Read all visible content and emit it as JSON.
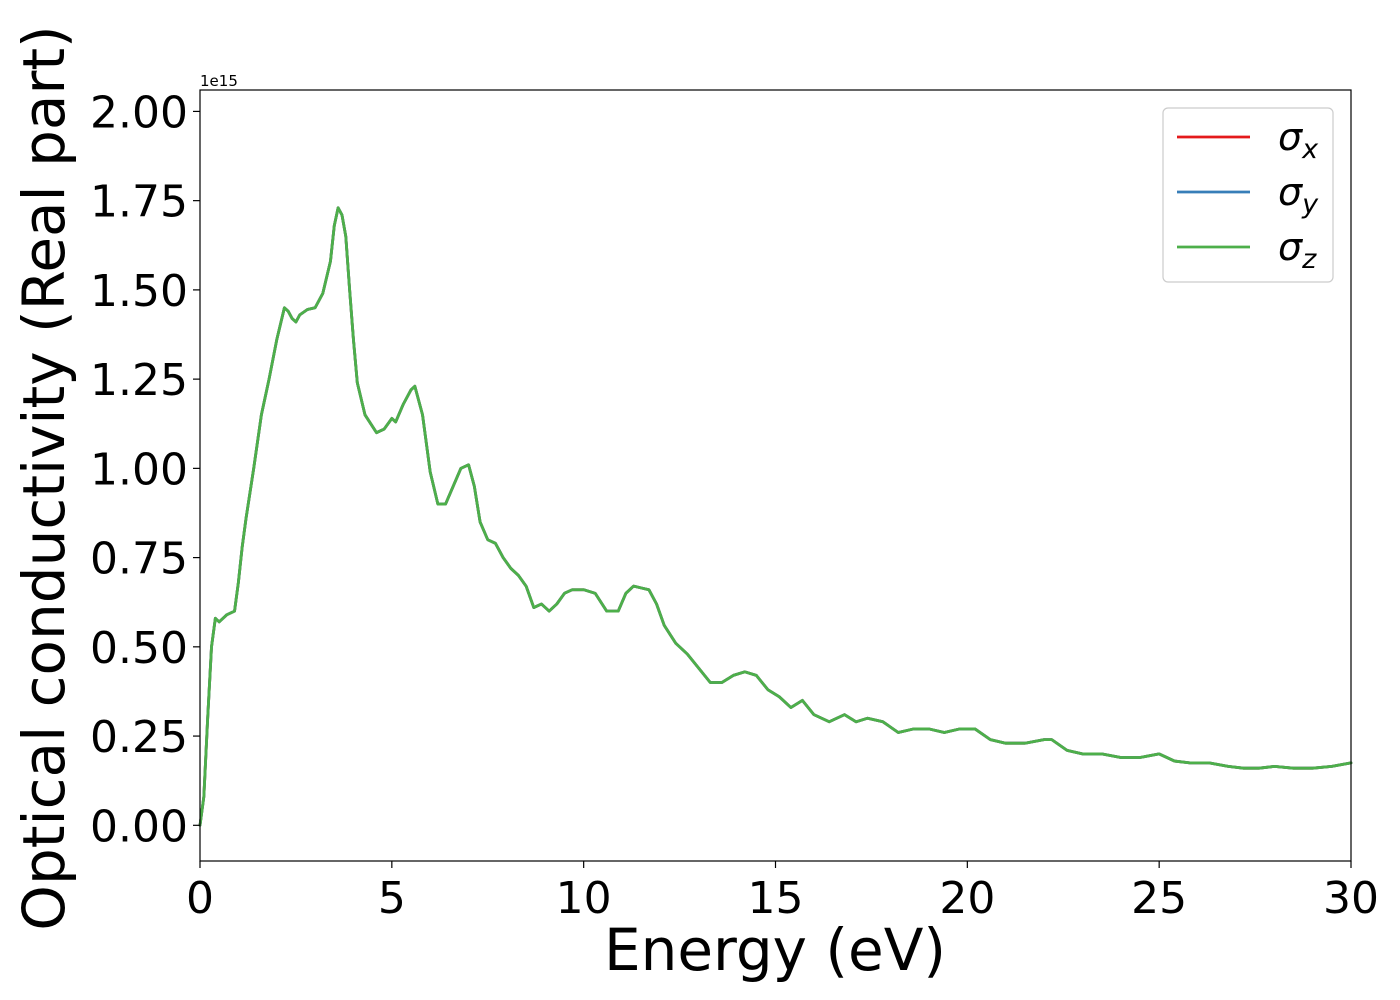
{
  "chart_data": {
    "type": "line",
    "title": "",
    "xlabel": "Energy (eV)",
    "ylabel": "Optical conductivity (Real part)",
    "y_offset_text": "1e15",
    "y_scale": 1000000000000000.0,
    "xlim": [
      0,
      30
    ],
    "ylim": [
      -0.1,
      2.06
    ],
    "x_ticks": [
      0,
      5,
      10,
      15,
      20,
      25,
      30
    ],
    "x_tick_labels": [
      "0",
      "5",
      "10",
      "15",
      "20",
      "25",
      "30"
    ],
    "y_ticks": [
      0,
      0.25,
      0.5,
      0.75,
      1.0,
      1.25,
      1.5,
      1.75,
      2.0
    ],
    "y_tick_labels": [
      "0.00",
      "0.25",
      "0.50",
      "0.75",
      "1.00",
      "1.25",
      "1.50",
      "1.75",
      "2.00"
    ],
    "grid": false,
    "legend_position": "top-right",
    "x": [
      0,
      0.1,
      0.2,
      0.3,
      0.4,
      0.5,
      0.7,
      0.9,
      1.0,
      1.1,
      1.2,
      1.4,
      1.6,
      1.8,
      2.0,
      2.2,
      2.3,
      2.4,
      2.5,
      2.6,
      2.8,
      3.0,
      3.2,
      3.4,
      3.5,
      3.6,
      3.7,
      3.8,
      3.9,
      4.0,
      4.1,
      4.3,
      4.6,
      4.8,
      5.0,
      5.1,
      5.3,
      5.5,
      5.6,
      5.8,
      6.0,
      6.2,
      6.4,
      6.6,
      6.8,
      7.0,
      7.15,
      7.3,
      7.5,
      7.7,
      7.9,
      8.1,
      8.3,
      8.5,
      8.7,
      8.9,
      9.1,
      9.3,
      9.5,
      9.7,
      10.0,
      10.3,
      10.6,
      10.9,
      11.1,
      11.3,
      11.5,
      11.7,
      11.9,
      12.1,
      12.4,
      12.7,
      13.0,
      13.3,
      13.6,
      13.9,
      14.2,
      14.5,
      14.8,
      15.1,
      15.4,
      15.7,
      16.0,
      16.4,
      16.8,
      17.1,
      17.4,
      17.8,
      18.2,
      18.6,
      19.0,
      19.4,
      19.8,
      20.2,
      20.6,
      21.0,
      21.5,
      22.0,
      22.2,
      22.6,
      23.0,
      23.5,
      24.0,
      24.5,
      25.0,
      25.4,
      25.8,
      26.3,
      26.8,
      27.2,
      27.6,
      28.0,
      28.5,
      29.0,
      29.5,
      30.0
    ],
    "series": [
      {
        "name": "σ_x",
        "color": "#e41a1c",
        "values": [
          0,
          0.08,
          0.3,
          0.5,
          0.58,
          0.57,
          0.59,
          0.6,
          0.68,
          0.78,
          0.86,
          1.0,
          1.15,
          1.25,
          1.36,
          1.45,
          1.44,
          1.42,
          1.41,
          1.43,
          1.445,
          1.45,
          1.49,
          1.58,
          1.68,
          1.73,
          1.71,
          1.65,
          1.5,
          1.36,
          1.24,
          1.15,
          1.1,
          1.11,
          1.14,
          1.13,
          1.18,
          1.22,
          1.23,
          1.15,
          0.99,
          0.9,
          0.9,
          0.95,
          1.0,
          1.01,
          0.95,
          0.85,
          0.8,
          0.79,
          0.75,
          0.72,
          0.7,
          0.67,
          0.61,
          0.62,
          0.6,
          0.62,
          0.65,
          0.66,
          0.66,
          0.65,
          0.6,
          0.6,
          0.65,
          0.67,
          0.665,
          0.66,
          0.62,
          0.56,
          0.51,
          0.48,
          0.44,
          0.4,
          0.4,
          0.42,
          0.43,
          0.42,
          0.38,
          0.36,
          0.33,
          0.35,
          0.31,
          0.29,
          0.31,
          0.29,
          0.3,
          0.29,
          0.26,
          0.27,
          0.27,
          0.26,
          0.27,
          0.27,
          0.24,
          0.23,
          0.23,
          0.24,
          0.24,
          0.21,
          0.2,
          0.2,
          0.19,
          0.19,
          0.2,
          0.18,
          0.175,
          0.175,
          0.165,
          0.16,
          0.16,
          0.165,
          0.16,
          0.16,
          0.165,
          0.175
        ]
      },
      {
        "name": "σ_y",
        "color": "#377eb8",
        "values": [
          0,
          0.08,
          0.3,
          0.5,
          0.58,
          0.57,
          0.59,
          0.6,
          0.68,
          0.78,
          0.86,
          1.0,
          1.15,
          1.25,
          1.36,
          1.45,
          1.44,
          1.42,
          1.41,
          1.43,
          1.445,
          1.45,
          1.49,
          1.58,
          1.68,
          1.73,
          1.71,
          1.65,
          1.5,
          1.36,
          1.24,
          1.15,
          1.1,
          1.11,
          1.14,
          1.13,
          1.18,
          1.22,
          1.23,
          1.15,
          0.99,
          0.9,
          0.9,
          0.95,
          1.0,
          1.01,
          0.95,
          0.85,
          0.8,
          0.79,
          0.75,
          0.72,
          0.7,
          0.67,
          0.61,
          0.62,
          0.6,
          0.62,
          0.65,
          0.66,
          0.66,
          0.65,
          0.6,
          0.6,
          0.65,
          0.67,
          0.665,
          0.66,
          0.62,
          0.56,
          0.51,
          0.48,
          0.44,
          0.4,
          0.4,
          0.42,
          0.43,
          0.42,
          0.38,
          0.36,
          0.33,
          0.35,
          0.31,
          0.29,
          0.31,
          0.29,
          0.3,
          0.29,
          0.26,
          0.27,
          0.27,
          0.26,
          0.27,
          0.27,
          0.24,
          0.23,
          0.23,
          0.24,
          0.24,
          0.21,
          0.2,
          0.2,
          0.19,
          0.19,
          0.2,
          0.18,
          0.175,
          0.175,
          0.165,
          0.16,
          0.16,
          0.165,
          0.16,
          0.16,
          0.165,
          0.175
        ]
      },
      {
        "name": "σ_z",
        "color": "#4daf4a",
        "values": [
          0,
          0.08,
          0.3,
          0.5,
          0.58,
          0.57,
          0.59,
          0.6,
          0.68,
          0.78,
          0.86,
          1.0,
          1.15,
          1.25,
          1.36,
          1.45,
          1.44,
          1.42,
          1.41,
          1.43,
          1.445,
          1.45,
          1.49,
          1.58,
          1.68,
          1.73,
          1.71,
          1.65,
          1.5,
          1.36,
          1.24,
          1.15,
          1.1,
          1.11,
          1.14,
          1.13,
          1.18,
          1.22,
          1.23,
          1.15,
          0.99,
          0.9,
          0.9,
          0.95,
          1.0,
          1.01,
          0.95,
          0.85,
          0.8,
          0.79,
          0.75,
          0.72,
          0.7,
          0.67,
          0.61,
          0.62,
          0.6,
          0.62,
          0.65,
          0.66,
          0.66,
          0.65,
          0.6,
          0.6,
          0.65,
          0.67,
          0.665,
          0.66,
          0.62,
          0.56,
          0.51,
          0.48,
          0.44,
          0.4,
          0.4,
          0.42,
          0.43,
          0.42,
          0.38,
          0.36,
          0.33,
          0.35,
          0.31,
          0.29,
          0.31,
          0.29,
          0.3,
          0.29,
          0.26,
          0.27,
          0.27,
          0.26,
          0.27,
          0.27,
          0.24,
          0.23,
          0.23,
          0.24,
          0.24,
          0.21,
          0.2,
          0.2,
          0.19,
          0.19,
          0.2,
          0.18,
          0.175,
          0.175,
          0.165,
          0.16,
          0.16,
          0.165,
          0.16,
          0.16,
          0.165,
          0.175
        ]
      }
    ],
    "legend": [
      {
        "symbol": "σ",
        "subscript": "x"
      },
      {
        "symbol": "σ",
        "subscript": "y"
      },
      {
        "symbol": "σ",
        "subscript": "z"
      }
    ]
  }
}
